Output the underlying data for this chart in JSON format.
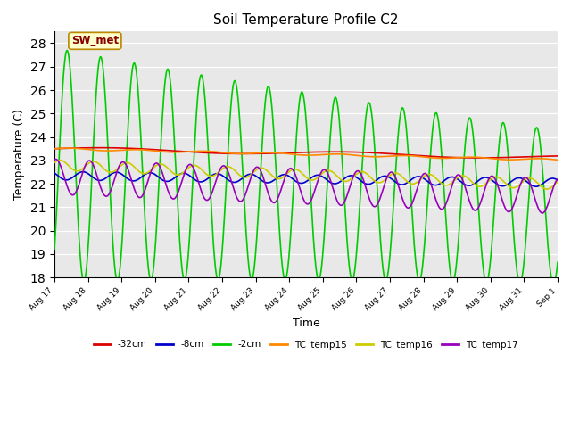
{
  "title": "Soil Temperature Profile C2",
  "xlabel": "Time",
  "ylabel": "Temperature (C)",
  "ylim": [
    18.0,
    28.5
  ],
  "yticks": [
    18.0,
    19.0,
    20.0,
    21.0,
    22.0,
    23.0,
    24.0,
    25.0,
    26.0,
    27.0,
    28.0
  ],
  "plot_bg_color": "#e8e8e8",
  "fig_bg_color": "#ffffff",
  "annotation_text": "SW_met",
  "annotation_bg": "#ffffcc",
  "annotation_border": "#bb8800",
  "annotation_text_color": "#880000",
  "legend_entries": [
    "-32cm",
    "-8cm",
    "-2cm",
    "TC_temp15",
    "TC_temp16",
    "TC_temp17"
  ],
  "line_colors": [
    "#dd0000",
    "#0000cc",
    "#00cc00",
    "#ff8800",
    "#cccc00",
    "#9900bb"
  ],
  "line_width": 1.2,
  "n_points": 720
}
